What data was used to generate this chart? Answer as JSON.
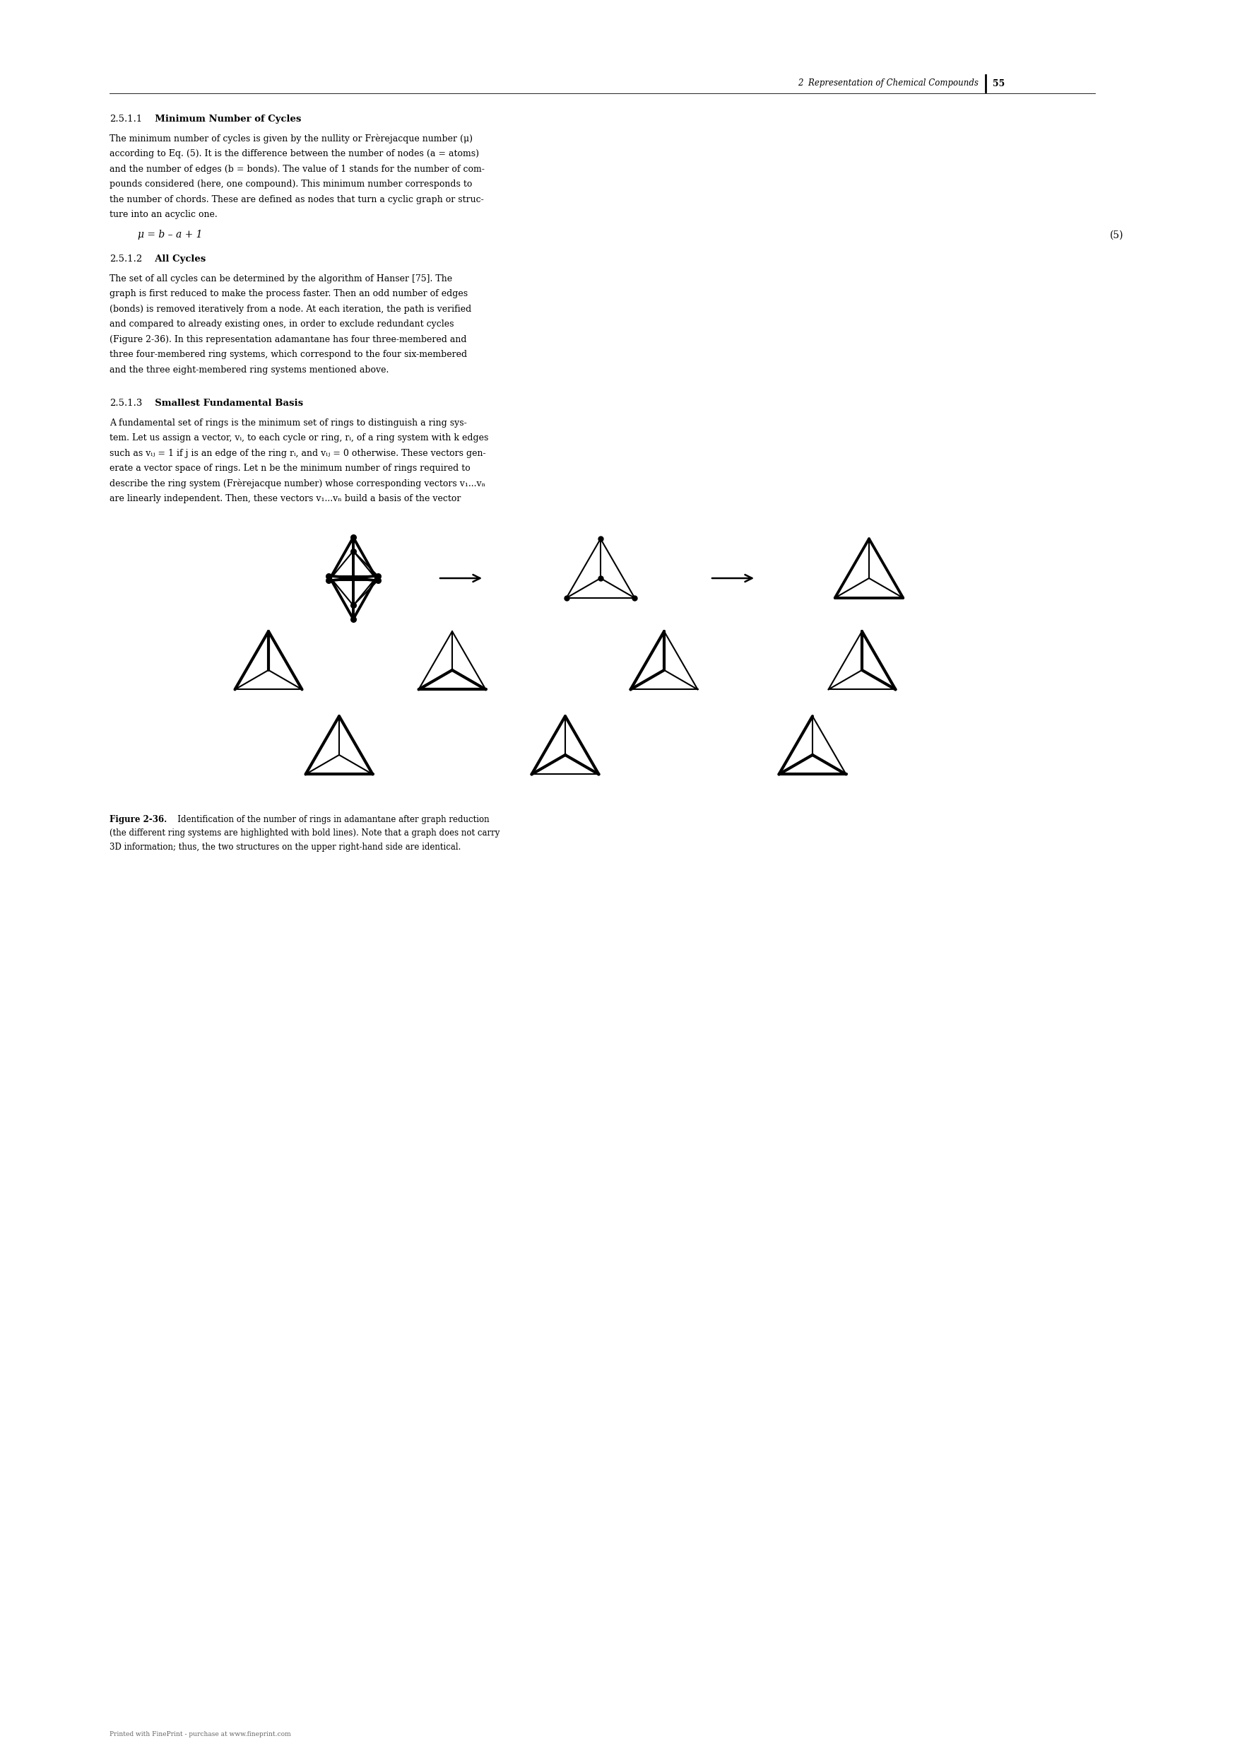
{
  "page_width": 17.48,
  "page_height": 24.8,
  "bg_color": "#ffffff",
  "text_color": "#000000",
  "header_italic": "2  Representation of Chemical Compounds",
  "page_number": "55",
  "sec251_num": "2.5.1.1",
  "sec251_bold": "  Minimum Number of Cycles",
  "sec251_lines": [
    "The minimum number of cycles is given by the nullity or Frèrejacque number (μ)",
    "according to Eq. (5). It is the difference between the number of nodes (a = atoms)",
    "and the number of edges (b = bonds). The value of 1 stands for the number of com-",
    "pounds considered (here, one compound). This minimum number corresponds to",
    "the number of chords. These are defined as nodes that turn a cyclic graph or struc-",
    "ture into an acyclic one."
  ],
  "equation": "μ = b – a + 1",
  "eq_number": "(5)",
  "sec252_num": "2.5.1.2",
  "sec252_bold": "  All Cycles",
  "sec252_lines": [
    "The set of all cycles can be determined by the algorithm of Hanser [75]. The",
    "graph is first reduced to make the process faster. Then an odd number of edges",
    "(bonds) is removed iteratively from a node. At each iteration, the path is verified",
    "and compared to already existing ones, in order to exclude redundant cycles",
    "(Figure 2-36). In this representation adamantane has four three-membered and",
    "three four-membered ring systems, which correspond to the four six-membered",
    "and the three eight-membered ring systems mentioned above."
  ],
  "sec253_num": "2.5.1.3",
  "sec253_bold": "  Smallest Fundamental Basis",
  "sec253_lines": [
    "A fundamental set of rings is the minimum set of rings to distinguish a ring sys-",
    "tem. Let us assign a vector, vᵢ, to each cycle or ring, rᵢ, of a ring system with k edges",
    "such as vᵢⱼ = 1 if j is an edge of the ring rᵢ, and vᵢⱼ = 0 otherwise. These vectors gen-",
    "erate a vector space of rings. Let n be the minimum number of rings required to",
    "describe the ring system (Frèrejacque number) whose corresponding vectors v₁...vₙ",
    "are linearly independent. Then, these vectors v₁...vₙ build a basis of the vector"
  ],
  "fig_bold": "Figure 2-36.",
  "fig_rest_lines": [
    "   Identification of the number of rings in adamantane after graph reduction",
    "(the different ring systems are highlighted with bold lines). Note that a graph does not carry",
    "3D information; thus, the two structures on the upper right-hand side are identical."
  ],
  "footer": "Printed with FinePrint - purchase at www.fineprint.com"
}
